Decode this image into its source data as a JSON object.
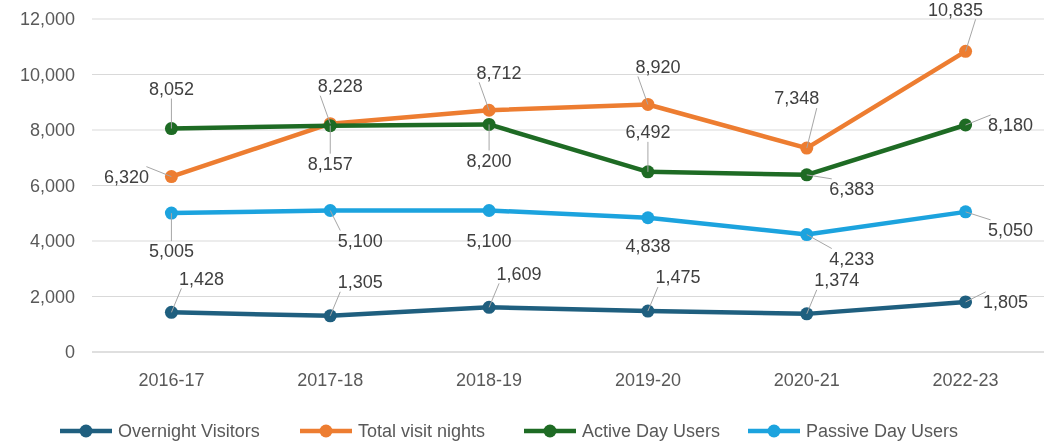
{
  "chart_data": {
    "type": "line",
    "categories": [
      "2016-17",
      "2017-18",
      "2018-19",
      "2019-20",
      "2020-21",
      "2022-23"
    ],
    "series": [
      {
        "name": "Overnight Visitors",
        "color": "#1f5f7f",
        "values": [
          1428,
          1305,
          1609,
          1475,
          1374,
          1805
        ],
        "value_labels": [
          "1,428",
          "1,305",
          "1,609",
          "1,475",
          "1,374",
          "1,805"
        ]
      },
      {
        "name": "Total visit nights",
        "color": "#ed7d31",
        "values": [
          6320,
          8228,
          8712,
          8920,
          7348,
          10835
        ],
        "value_labels": [
          "6,320",
          "8,228",
          "8,712",
          "8,920",
          "7,348",
          "10,835"
        ]
      },
      {
        "name": "Active Day Users",
        "color": "#1e6b24",
        "values": [
          8052,
          8157,
          8200,
          6492,
          6383,
          8180
        ],
        "value_labels": [
          "8,052",
          "8,157",
          "8,200",
          "6,492",
          "6,383",
          "8,180"
        ]
      },
      {
        "name": "Passive Day Users",
        "color": "#1ca3de",
        "values": [
          5005,
          5100,
          5100,
          4838,
          4233,
          5050
        ],
        "value_labels": [
          "5,005",
          "5,100",
          "5,100",
          "4,838",
          "4,233",
          "5,050"
        ]
      }
    ],
    "ylim": [
      0,
      12000
    ],
    "yticks": [
      {
        "value": 0,
        "label": "0"
      },
      {
        "value": 2000,
        "label": "2,000"
      },
      {
        "value": 4000,
        "label": "4,000"
      },
      {
        "value": 6000,
        "label": "6,000"
      },
      {
        "value": 8000,
        "label": "8,000"
      },
      {
        "value": 10000,
        "label": "10,000"
      },
      {
        "value": 12000,
        "label": "12,000"
      }
    ],
    "grid": "y",
    "legend": "bottom",
    "marker": "circle",
    "line_style": "solid"
  }
}
